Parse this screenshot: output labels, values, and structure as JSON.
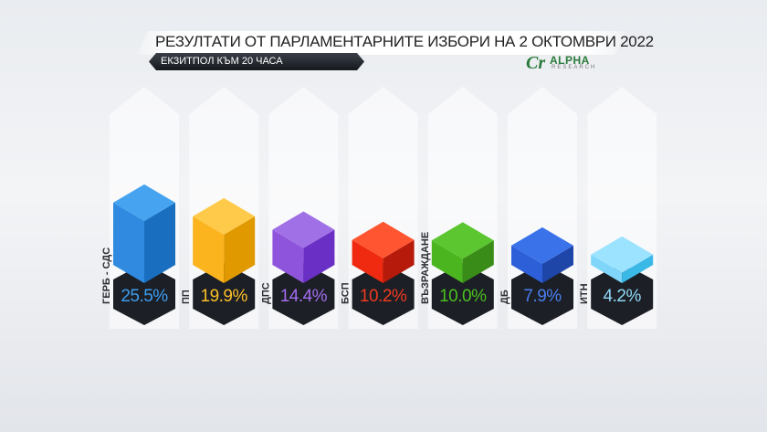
{
  "header": {
    "title": "РЕЗУЛТАТИ ОТ ПАРЛАМЕНТАРНИТЕ ИЗБОРИ НА 2 ОКТОМВРИ 2022",
    "subtitle": "ЕКЗИТПОЛ КЪМ 20 ЧАСА",
    "logo_text": "ALPHA",
    "logo_sub": "RESEARCH"
  },
  "chart_data": {
    "type": "bar",
    "title": "РЕЗУЛТАТИ ОТ ПАРЛАМЕНТАРНИТЕ ИЗБОРИ НА 2 ОКТОМВРИ 2022",
    "subtitle": "ЕКЗИТПОЛ КЪМ 20 ЧАСА",
    "categories": [
      "ГЕРБ - СДС",
      "ПП",
      "ДПС",
      "БСП",
      "ВЪЗРАЖДАНЕ",
      "ДБ",
      "ИТН"
    ],
    "values": [
      25.5,
      19.9,
      14.4,
      10.2,
      10.0,
      7.9,
      4.2
    ],
    "value_labels": [
      "25.5%",
      "19.9%",
      "14.4%",
      "10.2%",
      "10.0%",
      "7.9%",
      "4.2%"
    ],
    "unit": "%",
    "colors": [
      {
        "top": "#45a3f0",
        "left": "#2f8ae0",
        "right": "#1a6ec0",
        "text": "#3d9df0"
      },
      {
        "top": "#ffc94a",
        "left": "#fbb41e",
        "right": "#e09a00",
        "text": "#fbbf2a"
      },
      {
        "top": "#a070e6",
        "left": "#8e55dc",
        "right": "#6a2fc4",
        "text": "#a46cf0"
      },
      {
        "top": "#ff5530",
        "left": "#ef2a10",
        "right": "#b51a0a",
        "text": "#f03a20"
      },
      {
        "top": "#5cc630",
        "left": "#4bb520",
        "right": "#3a8c18",
        "text": "#4bc020"
      },
      {
        "top": "#3a72ea",
        "left": "#2c5fd8",
        "right": "#1e45a8",
        "text": "#4a7ef0"
      },
      {
        "top": "#9ce3ff",
        "left": "#7fd6fa",
        "right": "#3ab8e6",
        "text": "#90d8f8"
      }
    ],
    "grid": false,
    "legend": "none"
  }
}
